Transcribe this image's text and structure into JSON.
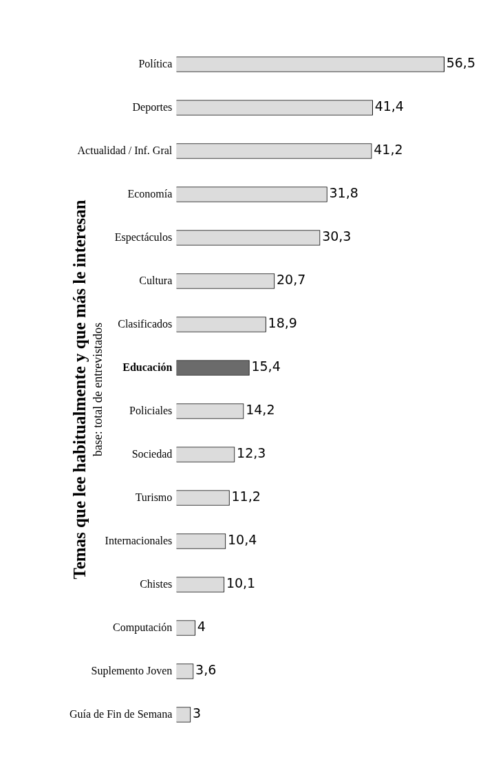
{
  "chart_data": {
    "type": "bar",
    "orientation": "horizontal",
    "title": "Temas que lee habitualmente y que más le interesan",
    "subtitle": "base: total de entrevistados",
    "categories": [
      "Política",
      "Deportes",
      "Actualidad / Inf. Gral",
      "Economía",
      "Espectáculos",
      "Cultura",
      "Clasificados",
      "Educación",
      "Policiales",
      "Sociedad",
      "Turismo",
      "Internacionales",
      "Chistes",
      "Computación",
      "Suplemento Joven",
      "Guía de Fin de Semana"
    ],
    "values": [
      56.5,
      41.4,
      41.2,
      31.8,
      30.3,
      20.7,
      18.9,
      15.4,
      14.2,
      12.3,
      11.2,
      10.4,
      10.1,
      4,
      3.6,
      3
    ],
    "value_labels": [
      "56,5",
      "41,4",
      "41,2",
      "31,8",
      "30,3",
      "20,7",
      "18,9",
      "15,4",
      "14,2",
      "12,3",
      "11,2",
      "10,4",
      "10,1",
      "4",
      "3,6",
      "3"
    ],
    "colors": [
      "#dcdcdc",
      "#dcdcdc",
      "#dcdcdc",
      "#dcdcdc",
      "#dcdcdc",
      "#dcdcdc",
      "#dcdcdc",
      "#6b6b6b",
      "#dcdcdc",
      "#dcdcdc",
      "#dcdcdc",
      "#dcdcdc",
      "#dcdcdc",
      "#dcdcdc",
      "#dcdcdc",
      "#dcdcdc"
    ],
    "legend": false,
    "tick_labels": "y"
  }
}
